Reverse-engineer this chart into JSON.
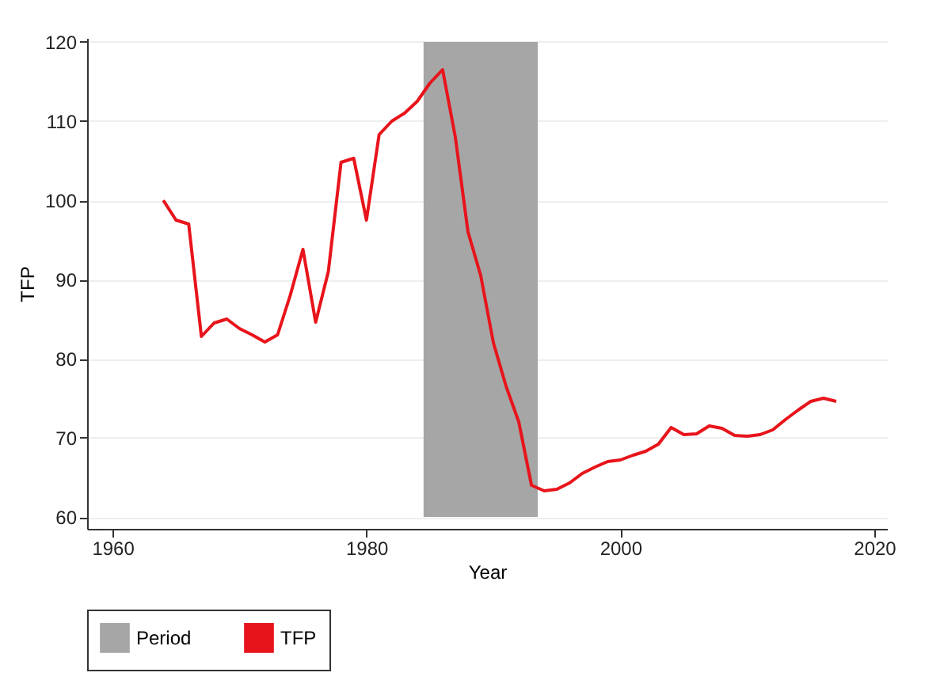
{
  "chart_data": {
    "type": "line",
    "xlabel": "Year",
    "ylabel": "TFP",
    "x": [
      1964,
      1965,
      1966,
      1967,
      1968,
      1969,
      1970,
      1971,
      1972,
      1973,
      1974,
      1975,
      1976,
      1977,
      1978,
      1979,
      1980,
      1981,
      1982,
      1983,
      1984,
      1985,
      1986,
      1987,
      1988,
      1989,
      1990,
      1991,
      1992,
      1993,
      1994,
      1995,
      1996,
      1997,
      1998,
      1999,
      2000,
      2001,
      2002,
      2003,
      2004,
      2005,
      2006,
      2007,
      2008,
      2009,
      2010,
      2011,
      2012,
      2013,
      2014,
      2015,
      2016,
      2017
    ],
    "series": [
      {
        "name": "TFP",
        "color": "#e8141b",
        "values": [
          100,
          97.5,
          97,
          82.8,
          84.5,
          85,
          83.8,
          83,
          82.1,
          83,
          88,
          93.8,
          84.6,
          91,
          104.8,
          105.3,
          97.5,
          108.3,
          110,
          111,
          112.5,
          114.8,
          116.5,
          108,
          96,
          90.5,
          82,
          76.5,
          72,
          64,
          63.3,
          63.5,
          64.3,
          65.5,
          66.3,
          67,
          67.2,
          67.8,
          68.3,
          69.2,
          71.3,
          70.4,
          70.5,
          71.5,
          71.2,
          70.3,
          70.2,
          70.4,
          71,
          72.3,
          73.5,
          74.6,
          75,
          74.6
        ]
      }
    ],
    "bands": [
      {
        "axis": "x",
        "from": 1984.5,
        "to": 1993.5,
        "label": "Period",
        "color": "#a6a6a6"
      }
    ],
    "xlim": [
      1958,
      2021
    ],
    "xticks": [
      1960,
      1980,
      2000,
      2020
    ],
    "ylim": [
      58.5,
      120.5
    ],
    "yticks": [
      60,
      70,
      80,
      90,
      100,
      110,
      120
    ],
    "grid": "y",
    "legend": "bottom",
    "line_style": "solid",
    "marker": "none"
  }
}
